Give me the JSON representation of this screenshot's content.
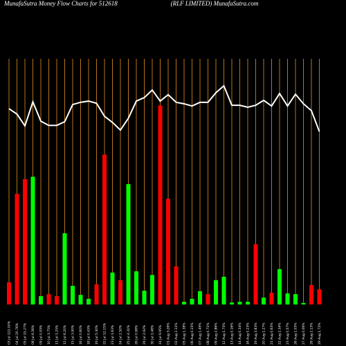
{
  "chart_data": {
    "type": "bar_line",
    "title": "MunafaSutra  Money Flow  Charts for 512618",
    "subtitle": "(RLF LIMITED) MunafaSutra.com",
    "categories": [
      "03 Jul 122.00%",
      "04 Jul 20.76%",
      "05 Jul 15.27%",
      "08 Jul 6.56%",
      "09 Jul 0.93%",
      "10 Jul 3.75%",
      "11 Jul 1.25%",
      "12 Jul 6.20%",
      "15 Jul 3.90%",
      "16 Jul 0.60%",
      "18 Jul 0.43%",
      "19 Jul 5.30%",
      "22 Jul 12.15%",
      "23 Jul 1.63%",
      "24 Jul 2.50%",
      "25 Jul 4.31%",
      "26 Jul 0.98%",
      "29 Jul 2.92%",
      "30 Jul 1.48%",
      "31 Jul 9.95%",
      "01 Aug 3.26%",
      "02 Aug 2.11%",
      "05 Aug 1.38%",
      "06 Aug 0.15%",
      "07 Aug 1.49%",
      "08 Aug 0.71%",
      "09 Aug 2.86%",
      "12 Aug 1.75%",
      "13 Aug 0.16%",
      "14 Aug 0.34%",
      "16 Aug 0.23%",
      "19 Aug 3.83%",
      "20 Aug 1.27%",
      "21 Aug 0.63%",
      "22 Aug 2.34%",
      "23 Aug 0.57%",
      "26 Aug 1.05%",
      "27 Aug 0.06%",
      "28 Aug 2.13%",
      "29 Aug 1.72%"
    ],
    "values": [
      9,
      45,
      51,
      52,
      3.4,
      4.2,
      3.4,
      29,
      7.6,
      3.9,
      2.3,
      8.2,
      61,
      13,
      9.9,
      49,
      13.5,
      5.6,
      12,
      81,
      43,
      15.5,
      1.1,
      2.3,
      5.4,
      4.2,
      9.9,
      11.3,
      0.8,
      1.1,
      1.1,
      24.5,
      2.8,
      4.8,
      14.4,
      4.5,
      4.2,
      0.6,
      7.9,
      6.2
    ],
    "colors": [
      "#ff0000",
      "#ff0000",
      "#ff0000",
      "#00ff00",
      "#00ff00",
      "#ff0000",
      "#ff0000",
      "#00ff00",
      "#00ff00",
      "#00ff00",
      "#00ff00",
      "#ff0000",
      "#ff0000",
      "#00ff00",
      "#ff0000",
      "#00ff00",
      "#00ff00",
      "#00ff00",
      "#00ff00",
      "#ff0000",
      "#ff0000",
      "#ff0000",
      "#00ff00",
      "#00ff00",
      "#00ff00",
      "#ff0000",
      "#00ff00",
      "#00ff00",
      "#00ff00",
      "#00ff00",
      "#00ff00",
      "#ff0000",
      "#00ff00",
      "#ff0000",
      "#00ff00",
      "#00ff00",
      "#00ff00",
      "#00ff00",
      "#ff0000",
      "#ff0000"
    ],
    "line": {
      "color": "#ffffff",
      "values": [
        79.7,
        77.5,
        72.7,
        82.5,
        74.6,
        72.9,
        72.9,
        74.4,
        81.4,
        82.3,
        82.8,
        81.9,
        76.6,
        74.1,
        71,
        75.8,
        82.8,
        84.2,
        87.3,
        82.8,
        85.4,
        82.3,
        81.7,
        80.8,
        82.3,
        82.3,
        86.2,
        89,
        81.1,
        81.1,
        80.3,
        81.1,
        83.1,
        80.8,
        85.9,
        80.8,
        85.6,
        81.7,
        78.9,
        70.4
      ]
    },
    "guide_color": "#b8741a",
    "ylim": [
      0,
      100
    ]
  }
}
